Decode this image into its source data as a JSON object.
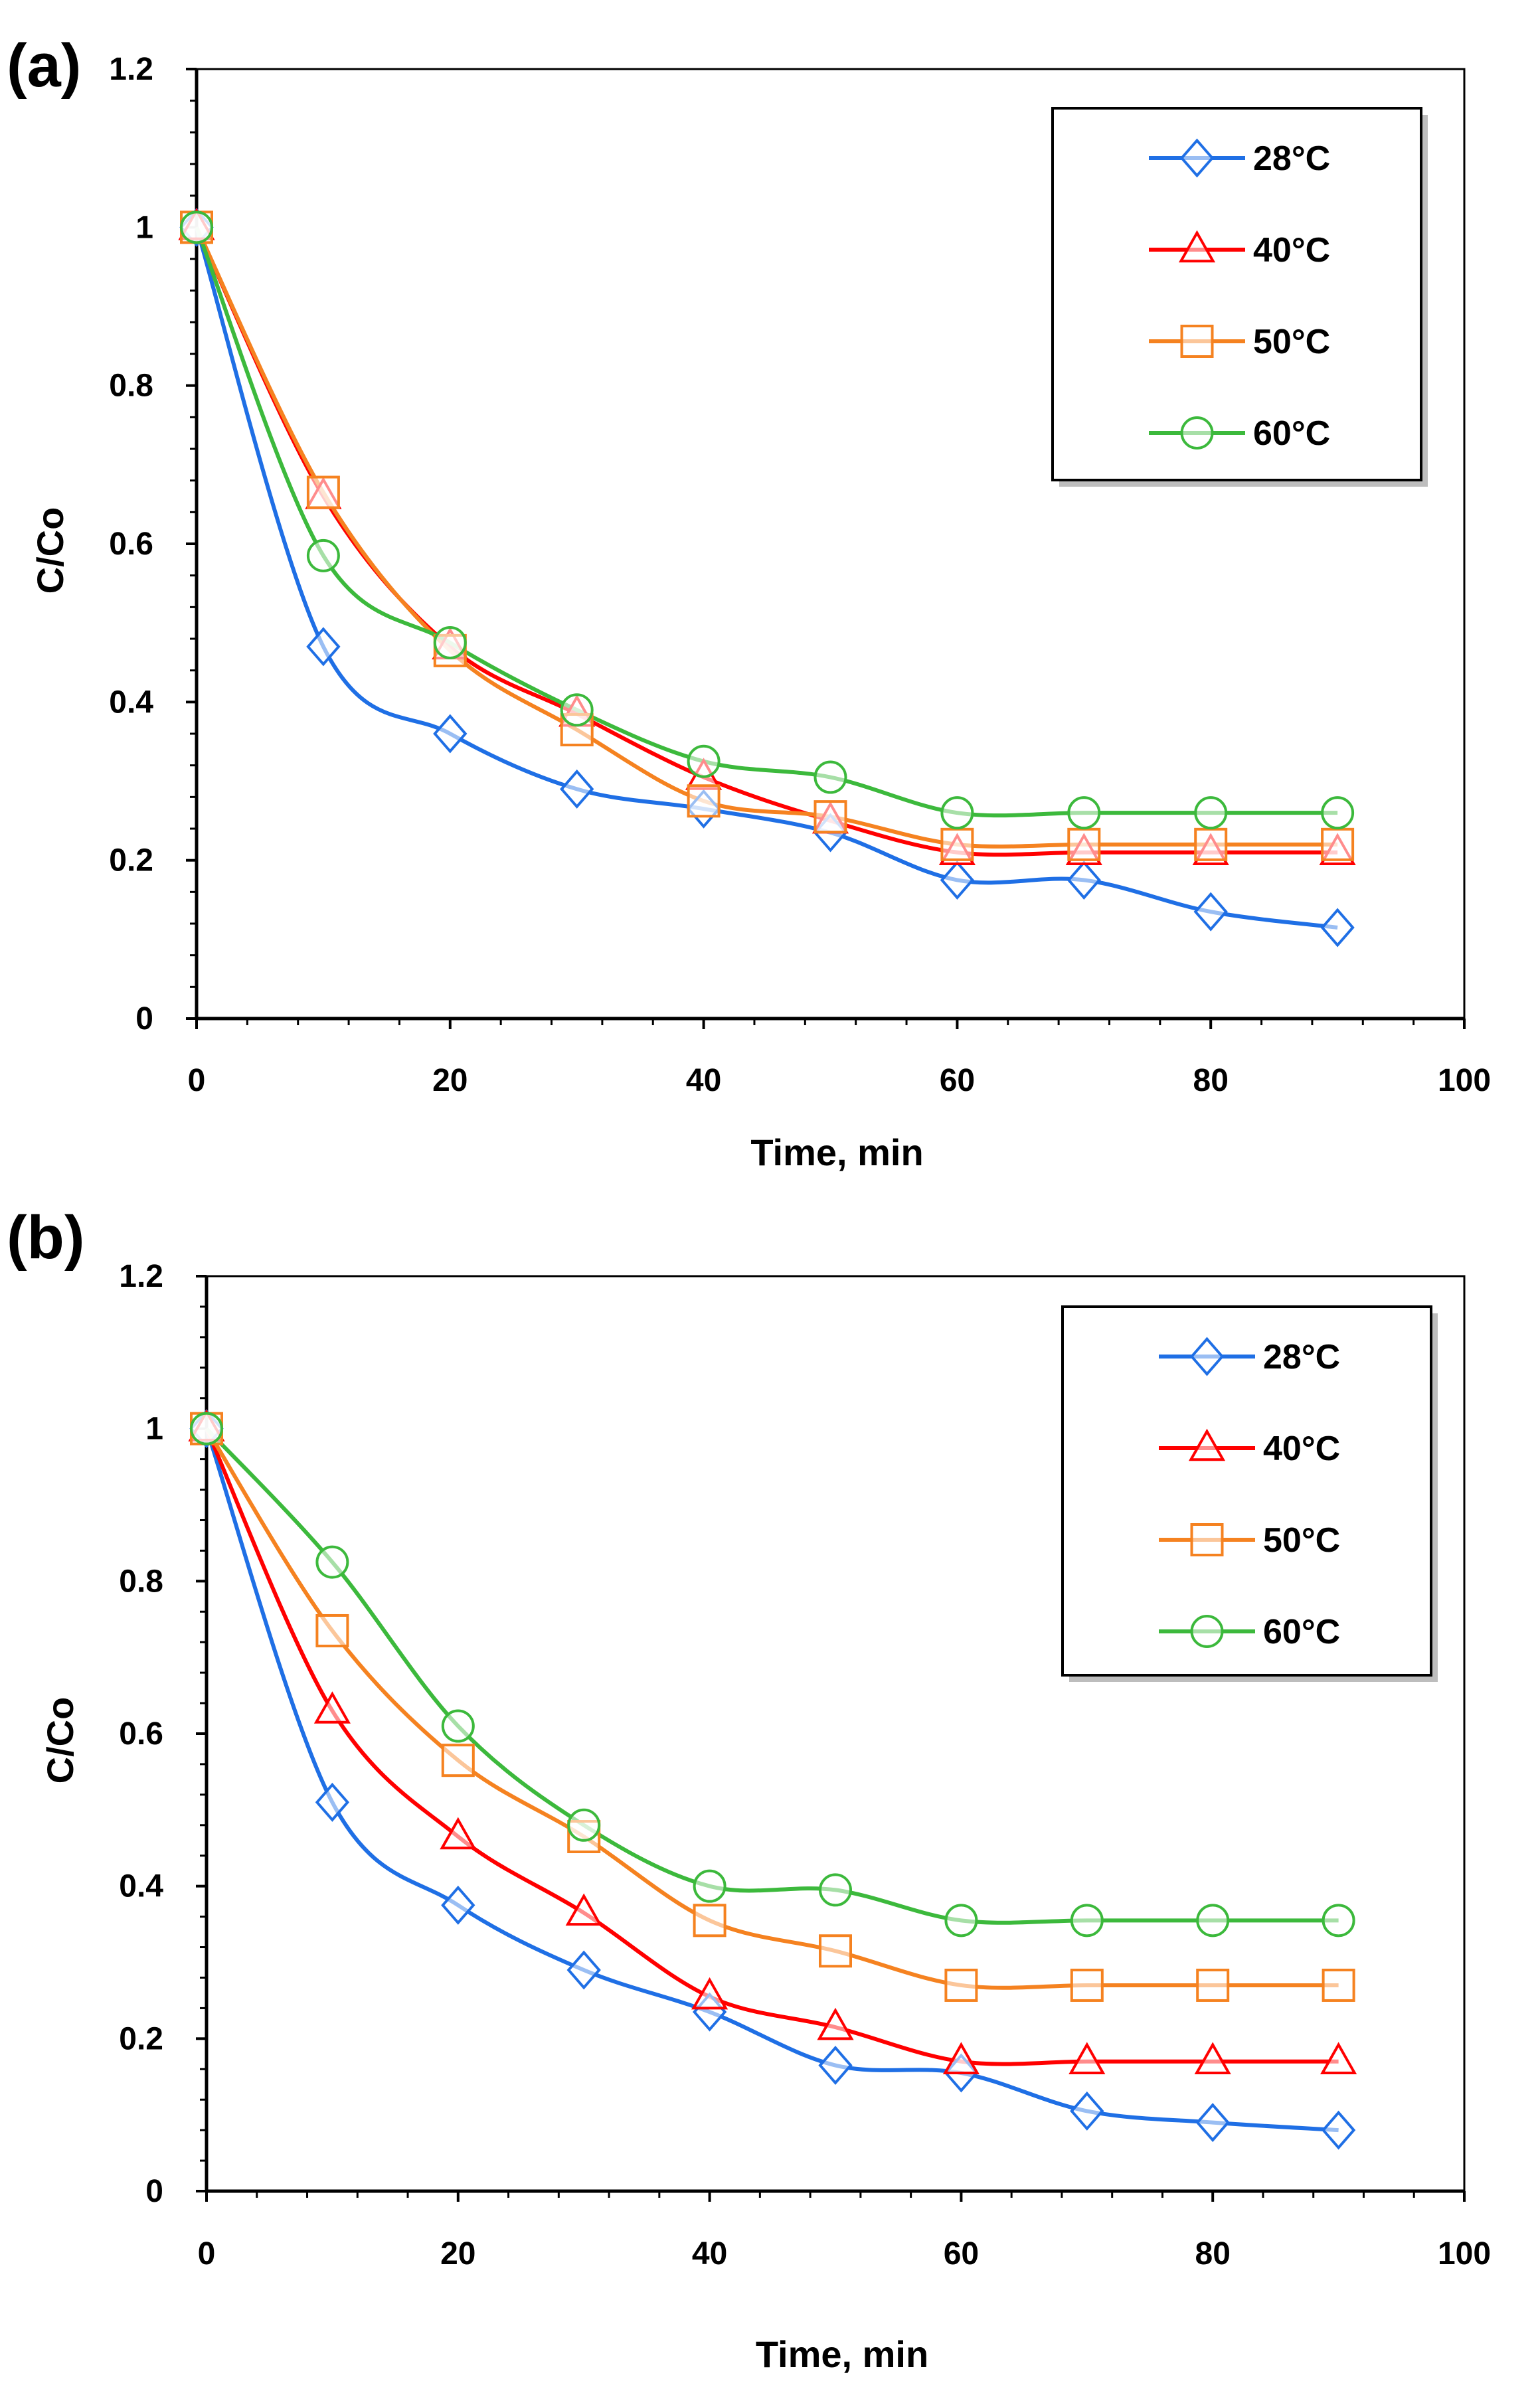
{
  "chart_data": [
    {
      "type": "line",
      "panel_label": "(a)",
      "xlabel": "Time, min",
      "ylabel": "C/Co",
      "xlim": [
        0,
        100
      ],
      "ylim": [
        0,
        1.2
      ],
      "x_ticks": [
        "0",
        "20",
        "40",
        "60",
        "80",
        "100"
      ],
      "y_ticks": [
        "0",
        "0.2",
        "0.4",
        "0.6",
        "0.8",
        "1",
        "1.2"
      ],
      "grid": false,
      "legend_position": "top-right",
      "x": [
        0,
        10,
        20,
        30,
        40,
        50,
        60,
        70,
        80,
        90
      ],
      "series": [
        {
          "name": "28°C",
          "color": "#1F6FE5",
          "marker": "diamond",
          "values": [
            1,
            0.47,
            0.36,
            0.29,
            0.265,
            0.235,
            0.175,
            0.175,
            0.135,
            0.115
          ]
        },
        {
          "name": "40°C",
          "color": "#FF0000",
          "marker": "triangle",
          "values": [
            1,
            0.66,
            0.47,
            0.385,
            0.305,
            0.25,
            0.21,
            0.21,
            0.21,
            0.21
          ]
        },
        {
          "name": "50°C",
          "color": "#F58220",
          "marker": "square",
          "values": [
            1,
            0.665,
            0.465,
            0.365,
            0.275,
            0.255,
            0.22,
            0.22,
            0.22,
            0.22
          ]
        },
        {
          "name": "60°C",
          "color": "#3CB93C",
          "marker": "circle",
          "values": [
            1,
            0.585,
            0.475,
            0.39,
            0.325,
            0.305,
            0.26,
            0.26,
            0.26,
            0.26
          ]
        }
      ]
    },
    {
      "type": "line",
      "panel_label": "(b)",
      "xlabel": "Time, min",
      "ylabel": "C/Co",
      "xlim": [
        0,
        100
      ],
      "ylim": [
        0,
        1.2
      ],
      "x_ticks": [
        "0",
        "20",
        "40",
        "60",
        "80",
        "100"
      ],
      "y_ticks": [
        "0",
        "0.2",
        "0.4",
        "0.6",
        "0.8",
        "1",
        "1.2"
      ],
      "grid": false,
      "legend_position": "top-right",
      "x": [
        0,
        10,
        20,
        30,
        40,
        50,
        60,
        70,
        80,
        90
      ],
      "series": [
        {
          "name": "28°C",
          "color": "#1F6FE5",
          "marker": "diamond",
          "values": [
            1,
            0.51,
            0.375,
            0.29,
            0.235,
            0.165,
            0.155,
            0.105,
            0.09,
            0.08
          ]
        },
        {
          "name": "40°C",
          "color": "#FF0000",
          "marker": "triangle",
          "values": [
            1,
            0.63,
            0.465,
            0.365,
            0.255,
            0.215,
            0.17,
            0.17,
            0.17,
            0.17
          ]
        },
        {
          "name": "50°C",
          "color": "#F58220",
          "marker": "square",
          "values": [
            1,
            0.735,
            0.565,
            0.465,
            0.355,
            0.315,
            0.27,
            0.27,
            0.27,
            0.27
          ]
        },
        {
          "name": "60°C",
          "color": "#3CB93C",
          "marker": "circle",
          "values": [
            1,
            0.825,
            0.61,
            0.48,
            0.4,
            0.395,
            0.355,
            0.355,
            0.355,
            0.355
          ]
        }
      ]
    }
  ]
}
